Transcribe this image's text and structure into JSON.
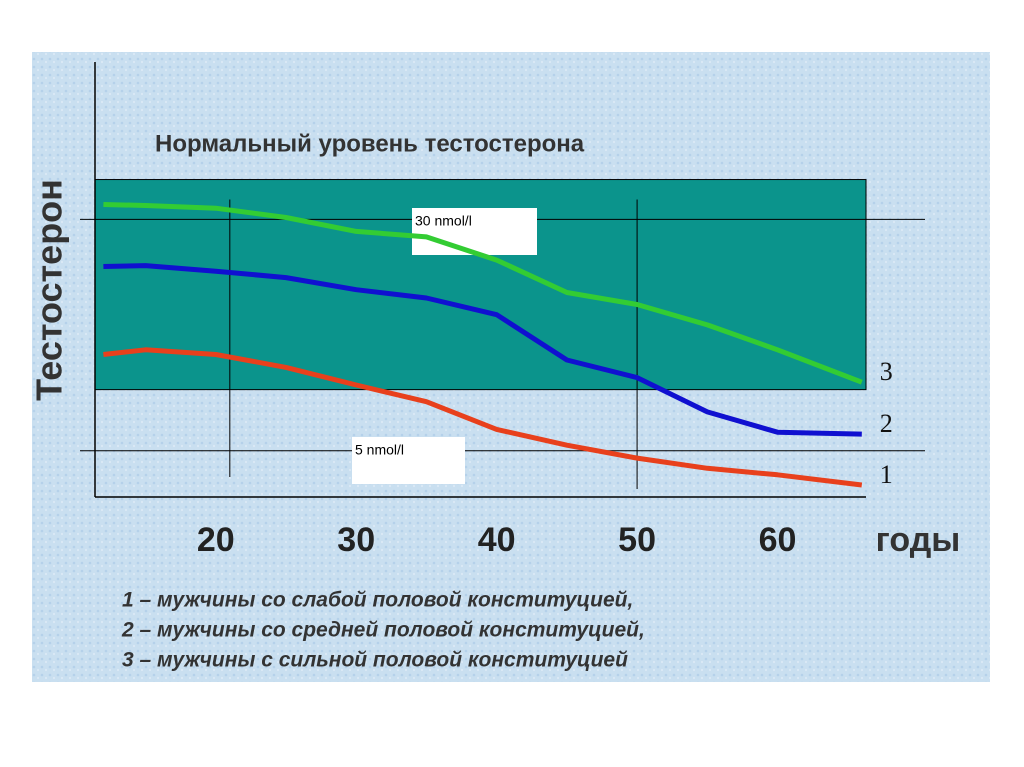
{
  "chart_data": {
    "type": "line",
    "title": "Нормальный уровень тестостерона",
    "x_label": "годы",
    "y_label": "Тестостерон",
    "x": [
      12,
      15,
      20,
      25,
      30,
      35,
      40,
      45,
      50,
      55,
      60,
      66
    ],
    "xlim": [
      11.4,
      66.3
    ],
    "xticks": [
      20,
      30,
      40,
      50,
      60
    ],
    "ylim": [
      0,
      47
    ],
    "band": [
      11.6,
      34.3
    ],
    "band_color": "#0b948c",
    "reference_lines": [
      {
        "value": 30,
        "label": "30 nmol/l"
      },
      {
        "value": 5,
        "label": "5 nmol/l"
      }
    ],
    "vertical_lines": [
      21,
      50
    ],
    "series": [
      {
        "name": "1",
        "color": "#e8401c",
        "values": [
          15.4,
          15.9,
          15.4,
          14.0,
          12.1,
          10.3,
          7.3,
          5.6,
          4.2,
          3.1,
          2.4,
          1.3
        ]
      },
      {
        "name": "2",
        "color": "#1010d0",
        "values": [
          24.9,
          25.0,
          24.4,
          23.7,
          22.4,
          21.5,
          19.7,
          14.8,
          12.9,
          9.2,
          7.0,
          6.8
        ]
      },
      {
        "name": "3",
        "color": "#33cc33",
        "values": [
          31.6,
          31.5,
          31.2,
          30.2,
          28.7,
          28.1,
          25.6,
          22.1,
          20.8,
          18.6,
          15.9,
          12.4
        ]
      }
    ],
    "legend": [
      "1 – мужчины со слабой половой конституцией,",
      "2 – мужчины со средней половой конституцией,",
      "3 – мужчины с сильной половой конституцией"
    ]
  }
}
